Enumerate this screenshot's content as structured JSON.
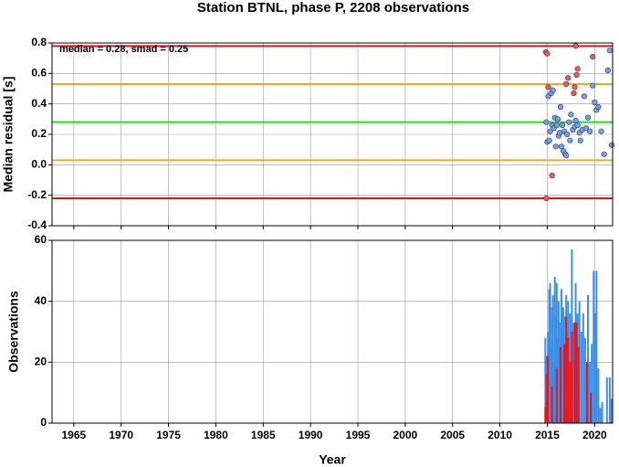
{
  "chart_data": [
    {
      "type": "scatter",
      "title": "Station BTNL, phase P, 2208 observations",
      "ylabel": "Median residual [s]",
      "annotation": "median = 0.28, smad = 0.25",
      "xlim": [
        1962.7,
        2021.9
      ],
      "ylim": [
        -0.4,
        0.8
      ],
      "xticks": [
        1965,
        1970,
        1975,
        1980,
        1985,
        1990,
        1995,
        2000,
        2005,
        2010,
        2015,
        2020
      ],
      "yticks": [
        -0.4,
        -0.2,
        {
          "value": 0,
          "label": "0.0"
        },
        0.2,
        0.4,
        0.6,
        0.8
      ],
      "grid": true,
      "hlines": [
        {
          "value": 0.78,
          "color": "#e8141c"
        },
        {
          "value": 0.53,
          "color": "#f5a623"
        },
        {
          "value": 0.28,
          "color": "#22e01c"
        },
        {
          "value": 0.03,
          "color": "#f5a623"
        },
        {
          "value": -0.22,
          "color": "#e8141c"
        }
      ],
      "series": [
        {
          "color": "#6fa0f5",
          "x": [
            2014.9,
            2015.0,
            2015.1,
            2015.2,
            2015.3,
            2015.4,
            2015.5,
            2015.6,
            2015.7,
            2015.8,
            2015.9,
            2016.0,
            2016.1,
            2016.2,
            2016.3,
            2016.4,
            2016.5,
            2016.6,
            2016.7,
            2016.8,
            2016.9,
            2017.0,
            2017.1,
            2017.3,
            2017.4,
            2017.5,
            2017.7,
            2017.9,
            2018.0,
            2018.2,
            2018.4,
            2018.5,
            2018.7,
            2018.9,
            2019.1,
            2019.3,
            2019.5,
            2019.8,
            2020.0,
            2020.2,
            2020.4,
            2020.7,
            2021.0,
            2021.4,
            2021.6,
            2021.8
          ],
          "values": [
            0.28,
            0.15,
            0.45,
            0.16,
            0.22,
            0.47,
            0.26,
            0.49,
            0.24,
            0.31,
            0.12,
            0.26,
            0.3,
            0.19,
            0.21,
            0.38,
            0.12,
            0.26,
            0.09,
            0.22,
            0.07,
            0.06,
            0.2,
            0.28,
            0.16,
            0.33,
            0.23,
            0.25,
            0.29,
            0.26,
            0.21,
            0.16,
            0.23,
            0.45,
            0.24,
            0.31,
            0.22,
            0.52,
            0.41,
            0.36,
            0.38,
            0.22,
            0.07,
            0.62,
            0.75,
            0.13
          ]
        },
        {
          "color": "#f25a55",
          "x": [
            2014.85,
            2015.0,
            2015.1,
            2015.5,
            2014.9,
            2017.0,
            2017.2,
            2017.8,
            2017.9,
            2018.1,
            2018.2,
            2018.0,
            2019.8
          ],
          "values": [
            0.74,
            0.73,
            0.51,
            -0.07,
            -0.22,
            0.53,
            0.57,
            0.47,
            0.51,
            0.59,
            0.63,
            0.78,
            0.71
          ]
        }
      ]
    },
    {
      "type": "bar",
      "xlabel": "Year",
      "ylabel": "Observations",
      "xlim": [
        1962.7,
        2021.9
      ],
      "ylim": [
        0,
        60
      ],
      "xticks": [
        1965,
        1970,
        1975,
        1980,
        1985,
        1990,
        1995,
        2000,
        2005,
        2010,
        2015,
        2020
      ],
      "yticks": [
        0,
        20,
        40,
        60
      ],
      "grid": true,
      "series": [
        {
          "color": "#3a8ee6",
          "x": [
            2014.8,
            2014.9,
            2015.0,
            2015.1,
            2015.2,
            2015.3,
            2015.4,
            2015.5,
            2015.6,
            2015.7,
            2015.8,
            2015.9,
            2016.0,
            2016.1,
            2016.2,
            2016.3,
            2016.4,
            2016.5,
            2016.6,
            2016.7,
            2016.8,
            2016.9,
            2017.0,
            2017.1,
            2017.2,
            2017.4,
            2017.6,
            2017.8,
            2018.0,
            2018.2,
            2018.4,
            2018.6,
            2018.8,
            2019.0,
            2019.2,
            2019.3,
            2019.5,
            2019.7,
            2019.9,
            2020.1,
            2020.2,
            2020.4,
            2020.6,
            2020.8,
            2021.3,
            2021.6,
            2021.8
          ],
          "values": [
            28,
            22,
            18,
            30,
            44,
            46,
            25,
            38,
            42,
            20,
            48,
            35,
            46,
            28,
            40,
            33,
            25,
            44,
            30,
            38,
            26,
            35,
            42,
            30,
            40,
            36,
            57,
            33,
            46,
            36,
            40,
            30,
            36,
            28,
            20,
            42,
            20,
            26,
            50,
            36,
            50,
            18,
            5,
            7,
            15,
            15,
            8
          ]
        },
        {
          "color": "#e8141c",
          "x": [
            2014.8,
            2014.95,
            2015.05,
            2015.5,
            2016.0,
            2016.4,
            2016.8,
            2017.0,
            2017.2,
            2017.4,
            2017.6,
            2017.9,
            2018.1,
            2018.3,
            2019.2,
            2019.6
          ],
          "values": [
            5,
            16,
            22,
            12,
            18,
            25,
            26,
            35,
            28,
            20,
            30,
            33,
            33,
            25,
            20,
            10
          ]
        }
      ]
    }
  ]
}
